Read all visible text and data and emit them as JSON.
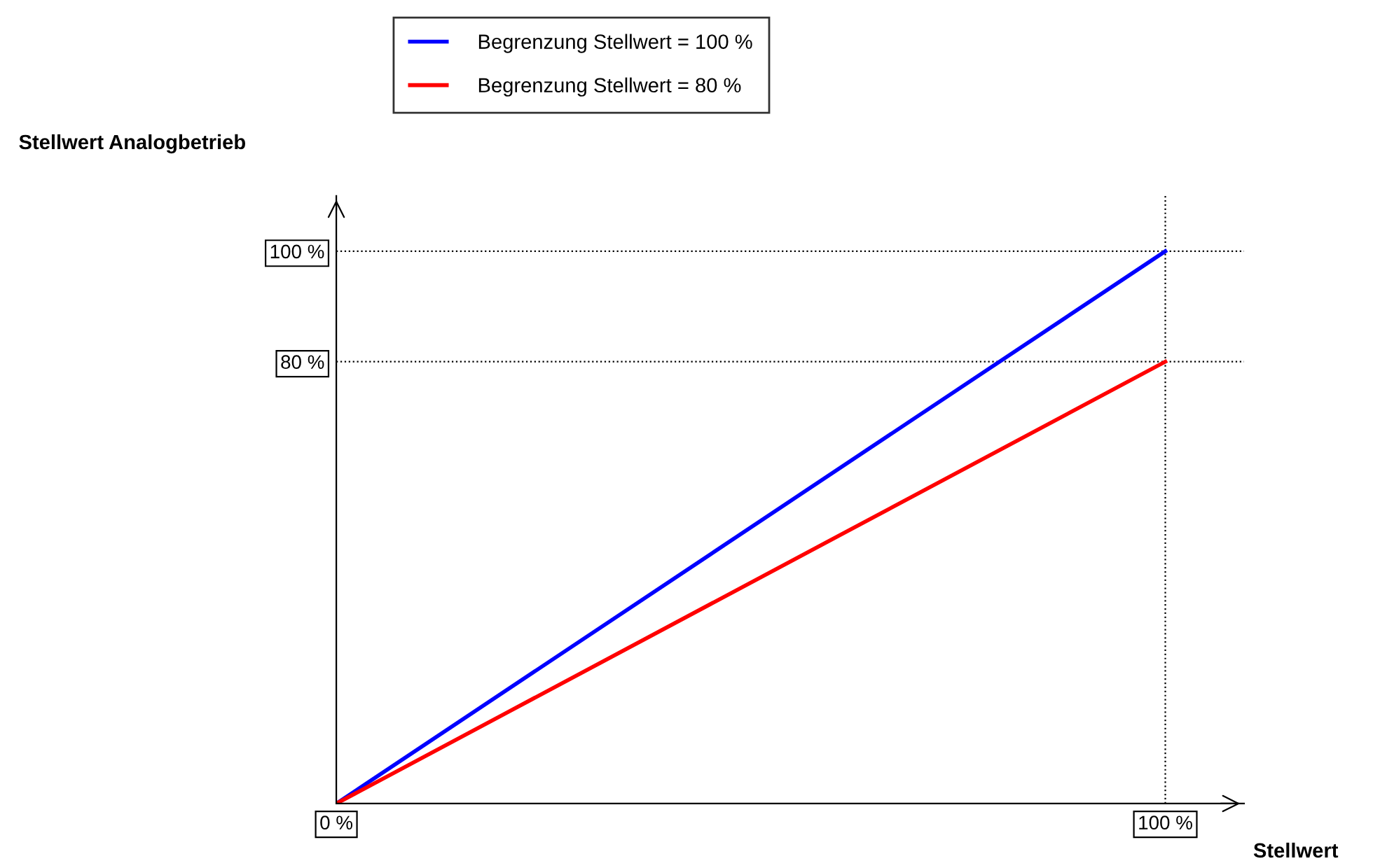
{
  "chart_data": {
    "type": "line",
    "xlabel": "Stellwert",
    "ylabel": "Stellwert Analogbetrieb",
    "x": [
      0,
      100
    ],
    "series": [
      {
        "name": "Begrenzung Stellwert = 100 %",
        "color": "#0000ff",
        "values": [
          0,
          100
        ]
      },
      {
        "name": "Begrenzung Stellwert = 80 %",
        "color": "#ff0000",
        "values": [
          0,
          80
        ]
      }
    ],
    "xlim": [
      0,
      109.5
    ],
    "ylim": [
      0,
      110
    ],
    "xticks": [
      {
        "value": 0,
        "label": "0 %"
      },
      {
        "value": 100,
        "label": "100 %"
      }
    ],
    "yticks": [
      {
        "value": 80,
        "label": "80 %"
      },
      {
        "value": 100,
        "label": "100 %"
      }
    ],
    "ref_lines": [
      {
        "axis": "y",
        "value": 100,
        "color": "#000000",
        "line_style": "dotted"
      },
      {
        "axis": "y",
        "value": 80,
        "color": "#000000",
        "line_style": "dotted"
      },
      {
        "axis": "x",
        "value": 100,
        "color": "#000000",
        "line_style": "dotted"
      }
    ],
    "grid": false,
    "legend": "top",
    "marker": "none",
    "line_style": "solid"
  }
}
